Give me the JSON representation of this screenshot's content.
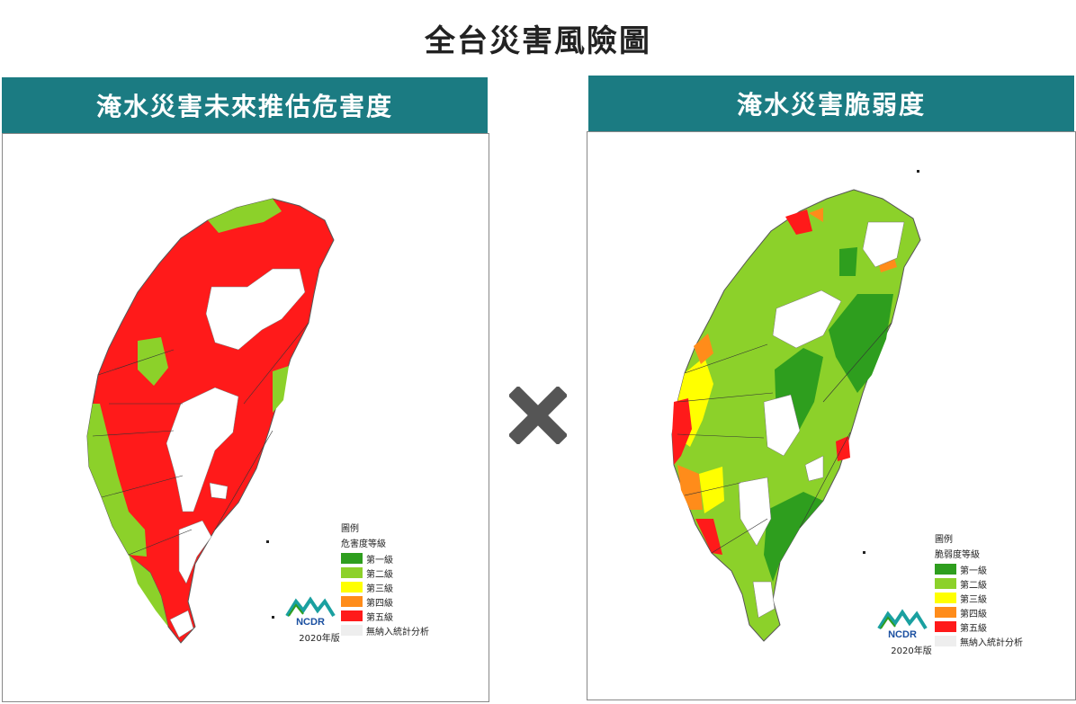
{
  "page_title": "全台災害風險圖",
  "left_panel": {
    "header": "淹水災害未來推估危害度",
    "legend_title": "圖例",
    "legend_subtitle": "危害度等級",
    "levels": [
      {
        "label": "第一級",
        "color": "#2e9e1e"
      },
      {
        "label": "第二級",
        "color": "#8cd12a"
      },
      {
        "label": "第三級",
        "color": "#ffff00"
      },
      {
        "label": "第四級",
        "color": "#ff8c1a"
      },
      {
        "label": "第五級",
        "color": "#ff1a1a"
      }
    ],
    "nodata_label": "無納入統計分析",
    "year": "2020年版",
    "logo_text": "NCDR"
  },
  "right_panel": {
    "header": "淹水災害脆弱度",
    "legend_title": "圖例",
    "legend_subtitle": "脆弱度等級",
    "levels": [
      {
        "label": "第一級",
        "color": "#2e9e1e"
      },
      {
        "label": "第二級",
        "color": "#8cd12a"
      },
      {
        "label": "第三級",
        "color": "#ffff00"
      },
      {
        "label": "第四級",
        "color": "#ff8c1a"
      },
      {
        "label": "第五級",
        "color": "#ff1a1a"
      }
    ],
    "nodata_label": "無納入統計分析",
    "year": "2020年版",
    "logo_text": "NCDR"
  },
  "operator_icon": "multiply-icon",
  "colors": {
    "header_bg": "#1b7b82",
    "mountain_nodata": "#ffffff",
    "operator": "#555555"
  }
}
